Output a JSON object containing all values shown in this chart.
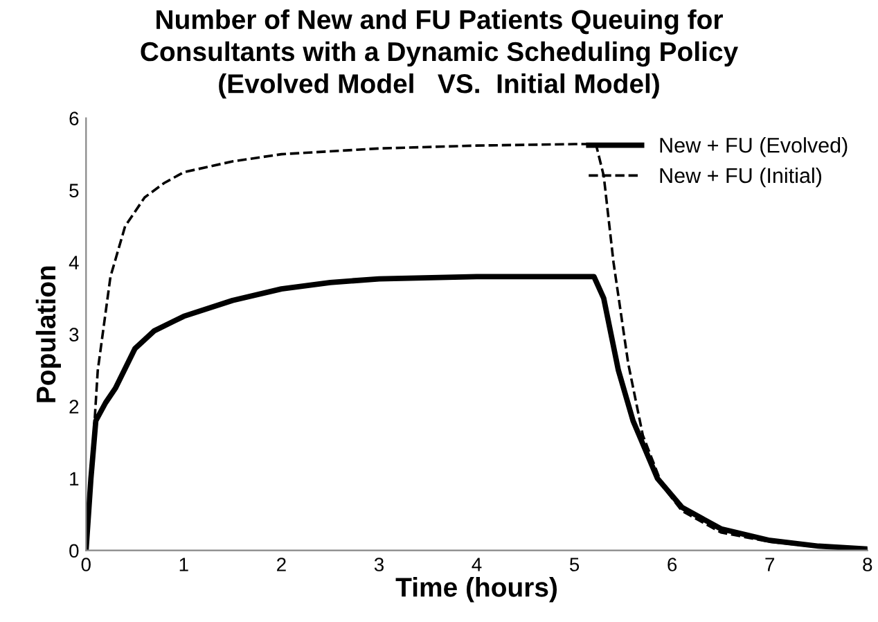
{
  "chart_data": {
    "type": "line",
    "title": "Number of New and FU Patients Queuing for\nConsultants with a Dynamic Scheduling Policy\n(Evolved Model   VS.  Initial Model)",
    "xlabel": "Time (hours)",
    "ylabel": "Population",
    "xlim": [
      0,
      8
    ],
    "xticks": [
      0,
      1,
      2,
      3,
      4,
      5,
      6,
      7,
      8
    ],
    "ylim": [
      0,
      6
    ],
    "yticks": [
      0,
      1,
      2,
      3,
      4,
      5,
      6
    ],
    "grid": false,
    "legend": "top right",
    "marker": "none",
    "series": [
      {
        "name": "New + FU (Evolved)",
        "color": "#000000",
        "line_style": "solid",
        "x": [
          0,
          0.05,
          0.1,
          0.2,
          0.3,
          0.5,
          0.7,
          1.0,
          1.5,
          2.0,
          2.5,
          3.0,
          4.0,
          5.0,
          5.2,
          5.3,
          5.45,
          5.6,
          5.85,
          6.1,
          6.5,
          7.0,
          7.5,
          8.0
        ],
        "values": [
          0,
          1.0,
          1.8,
          2.05,
          2.25,
          2.8,
          3.05,
          3.25,
          3.47,
          3.63,
          3.72,
          3.77,
          3.8,
          3.8,
          3.8,
          3.5,
          2.5,
          1.8,
          1.0,
          0.6,
          0.3,
          0.14,
          0.06,
          0.02
        ]
      },
      {
        "name": "New + FU (Initial)",
        "color": "#000000",
        "line_style": "dashed",
        "x": [
          0,
          0.06,
          0.12,
          0.25,
          0.4,
          0.6,
          0.8,
          1.0,
          1.5,
          2.0,
          3.0,
          4.0,
          5.0,
          5.22,
          5.3,
          5.4,
          5.55,
          5.7,
          5.9,
          6.1,
          6.5,
          7.0,
          7.5,
          8.0
        ],
        "values": [
          0,
          1.2,
          2.5,
          3.8,
          4.5,
          4.9,
          5.1,
          5.25,
          5.4,
          5.5,
          5.58,
          5.62,
          5.64,
          5.64,
          5.2,
          4.0,
          2.6,
          1.6,
          0.9,
          0.55,
          0.25,
          0.12,
          0.05,
          0.02
        ]
      }
    ]
  }
}
